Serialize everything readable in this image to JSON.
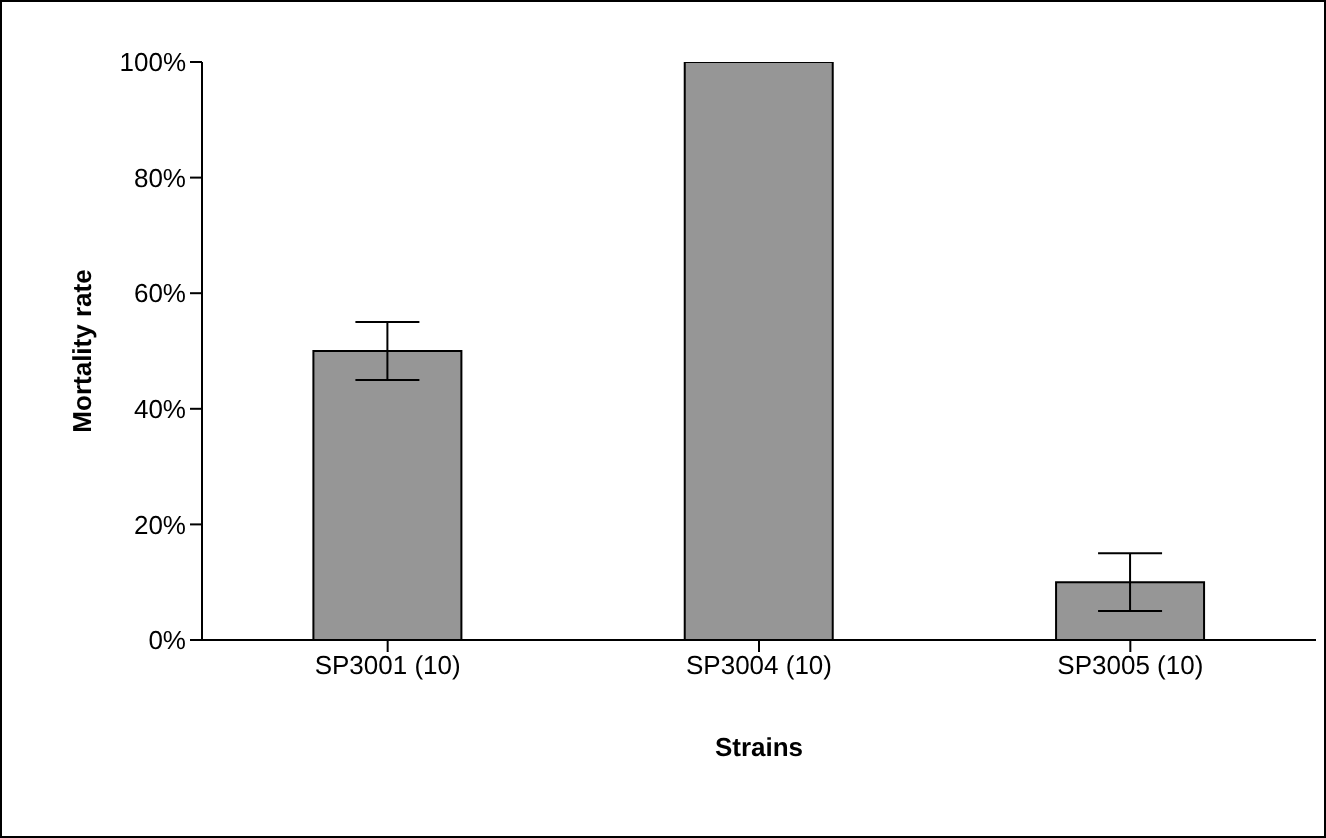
{
  "chart_data": {
    "type": "bar",
    "xlabel": "Strains",
    "ylabel": "Mortality rate",
    "categories": [
      "SP3001 (10)",
      "SP3004 (10)",
      "SP3005 (10)"
    ],
    "values": [
      50,
      100,
      10
    ],
    "errors": [
      5,
      0,
      5
    ],
    "color": "#969696",
    "ylim": [
      0,
      100
    ],
    "yticks": [
      {
        "value": 0,
        "label": "0%"
      },
      {
        "value": 20,
        "label": "20%"
      },
      {
        "value": 40,
        "label": "40%"
      },
      {
        "value": 60,
        "label": "60%"
      },
      {
        "value": 80,
        "label": "80%"
      },
      {
        "value": 100,
        "label": "100%"
      }
    ],
    "grid": false,
    "legend": false
  }
}
